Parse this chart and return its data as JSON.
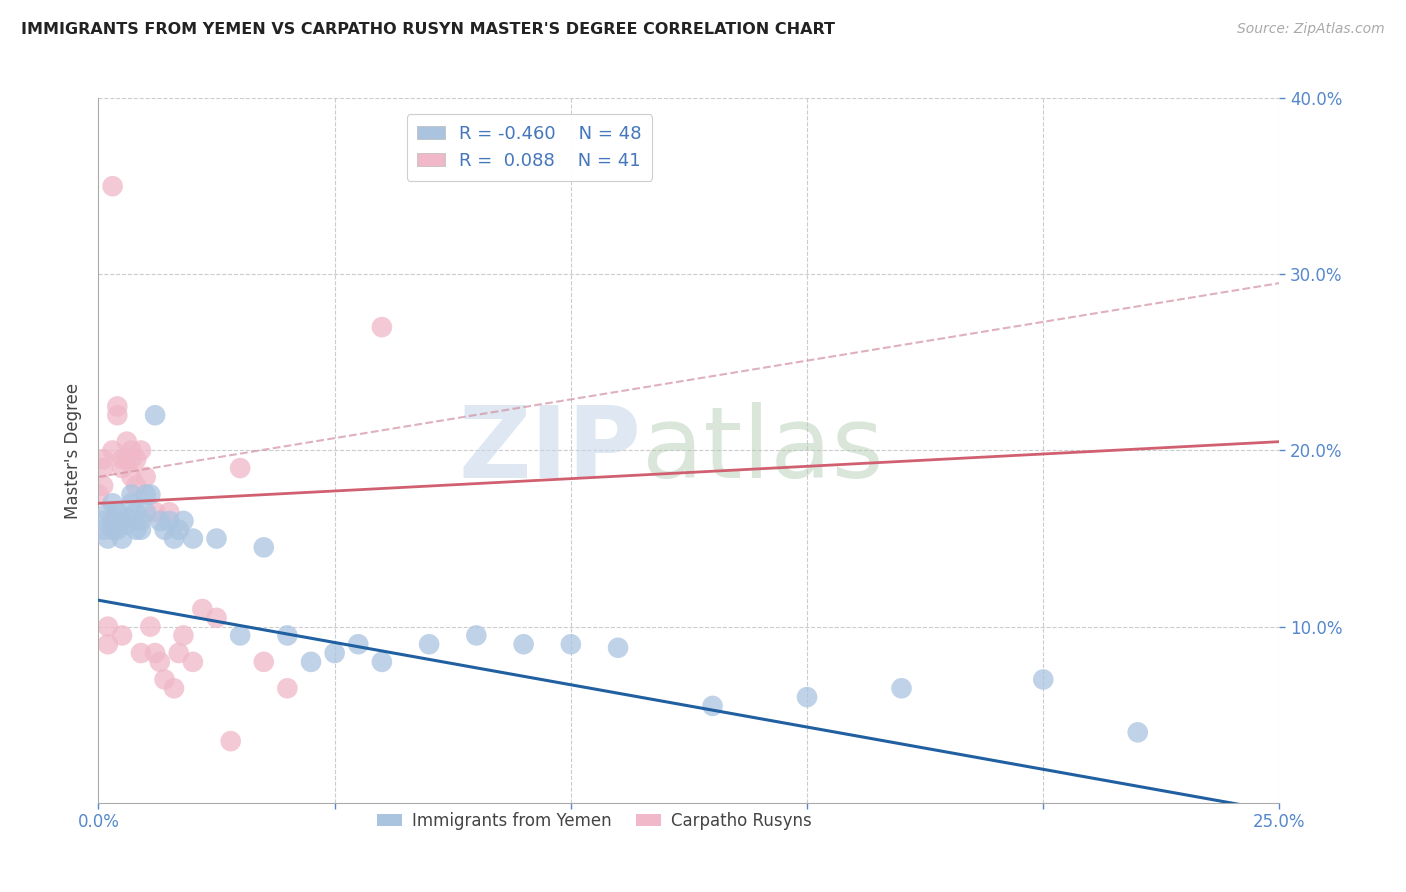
{
  "title": "IMMIGRANTS FROM YEMEN VS CARPATHO RUSYN MASTER'S DEGREE CORRELATION CHART",
  "source": "Source: ZipAtlas.com",
  "ylabel": "Master's Degree",
  "xlim": [
    0.0,
    0.25
  ],
  "ylim": [
    0.0,
    0.4
  ],
  "blue_R": -0.46,
  "blue_N": 48,
  "pink_R": 0.088,
  "pink_N": 41,
  "blue_color": "#aac4e0",
  "pink_color": "#f0b8c8",
  "blue_line_color": "#2060a0",
  "pink_line_color": "#d06070",
  "pink_dash_color": "#d090a0",
  "grid_color": "#cccccc",
  "blue_scatter_x": [
    0.001,
    0.001,
    0.002,
    0.002,
    0.003,
    0.003,
    0.003,
    0.004,
    0.004,
    0.005,
    0.005,
    0.006,
    0.006,
    0.007,
    0.007,
    0.008,
    0.008,
    0.009,
    0.009,
    0.01,
    0.01,
    0.011,
    0.012,
    0.013,
    0.014,
    0.015,
    0.016,
    0.017,
    0.018,
    0.02,
    0.025,
    0.03,
    0.035,
    0.04,
    0.045,
    0.05,
    0.055,
    0.06,
    0.07,
    0.08,
    0.09,
    0.1,
    0.11,
    0.13,
    0.15,
    0.17,
    0.2,
    0.22
  ],
  "blue_scatter_y": [
    0.155,
    0.16,
    0.15,
    0.165,
    0.155,
    0.16,
    0.17,
    0.155,
    0.165,
    0.15,
    0.16,
    0.158,
    0.162,
    0.17,
    0.175,
    0.155,
    0.165,
    0.155,
    0.16,
    0.175,
    0.165,
    0.175,
    0.22,
    0.16,
    0.155,
    0.16,
    0.15,
    0.155,
    0.16,
    0.15,
    0.15,
    0.095,
    0.145,
    0.095,
    0.08,
    0.085,
    0.09,
    0.08,
    0.09,
    0.095,
    0.09,
    0.09,
    0.088,
    0.055,
    0.06,
    0.065,
    0.07,
    0.04
  ],
  "pink_scatter_x": [
    0.0,
    0.001,
    0.001,
    0.001,
    0.002,
    0.002,
    0.003,
    0.003,
    0.004,
    0.004,
    0.005,
    0.005,
    0.005,
    0.006,
    0.006,
    0.007,
    0.007,
    0.007,
    0.008,
    0.008,
    0.009,
    0.009,
    0.01,
    0.011,
    0.012,
    0.012,
    0.013,
    0.014,
    0.015,
    0.016,
    0.017,
    0.018,
    0.02,
    0.022,
    0.025,
    0.028,
    0.03,
    0.035,
    0.04,
    0.06,
    0.003
  ],
  "pink_scatter_y": [
    0.175,
    0.19,
    0.195,
    0.18,
    0.09,
    0.1,
    0.155,
    0.2,
    0.22,
    0.225,
    0.095,
    0.195,
    0.19,
    0.195,
    0.205,
    0.185,
    0.2,
    0.195,
    0.195,
    0.18,
    0.085,
    0.2,
    0.185,
    0.1,
    0.085,
    0.165,
    0.08,
    0.07,
    0.165,
    0.065,
    0.085,
    0.095,
    0.08,
    0.11,
    0.105,
    0.035,
    0.19,
    0.08,
    0.065,
    0.27,
    0.35
  ],
  "blue_trendline_x": [
    0.0,
    0.25
  ],
  "blue_trendline_y": [
    0.115,
    -0.005
  ],
  "pink_trendline_x": [
    0.0,
    0.25
  ],
  "pink_trendline_y": [
    0.17,
    0.205
  ],
  "pink_dash_trendline_x": [
    0.0,
    0.25
  ],
  "pink_dash_trendline_y": [
    0.185,
    0.295
  ]
}
